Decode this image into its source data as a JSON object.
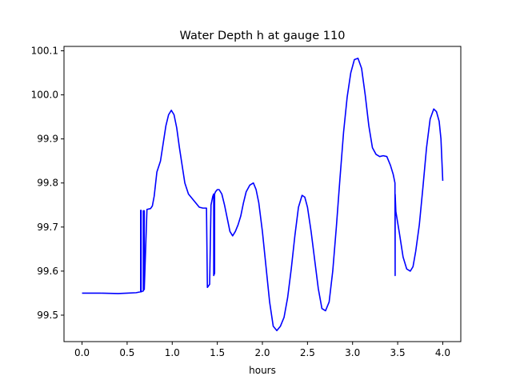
{
  "chart_data": {
    "type": "line",
    "title": "Water Depth h at gauge 110",
    "xlabel": "hours",
    "ylabel": "",
    "xlim": [
      -0.2,
      4.2
    ],
    "ylim": [
      99.44,
      100.11
    ],
    "xticks": [
      0.0,
      0.5,
      1.0,
      1.5,
      2.0,
      2.5,
      3.0,
      3.5,
      4.0
    ],
    "xtick_labels": [
      "0.0",
      "0.5",
      "1.0",
      "1.5",
      "2.0",
      "2.5",
      "3.0",
      "3.5",
      "4.0"
    ],
    "yticks": [
      99.5,
      99.6,
      99.7,
      99.8,
      99.9,
      100.0,
      100.1
    ],
    "ytick_labels": [
      "99.5",
      "99.6",
      "99.7",
      "99.8",
      "99.9",
      "100.0",
      "100.1"
    ],
    "grid": false,
    "legend": "none",
    "series": [
      {
        "color": "#0000ff",
        "x": [
          0.0,
          0.2,
          0.4,
          0.5,
          0.6,
          0.65,
          0.65,
          0.655,
          0.655,
          0.68,
          0.68,
          0.69,
          0.69,
          0.72,
          0.76,
          0.78,
          0.8,
          0.83,
          0.87,
          0.9,
          0.93,
          0.96,
          0.99,
          1.02,
          1.05,
          1.08,
          1.11,
          1.14,
          1.18,
          1.22,
          1.26,
          1.3,
          1.34,
          1.38,
          1.39,
          1.39,
          1.415,
          1.415,
          1.43,
          1.45,
          1.46,
          1.46,
          1.47,
          1.47,
          1.48,
          1.5,
          1.52,
          1.55,
          1.58,
          1.61,
          1.64,
          1.67,
          1.7,
          1.73,
          1.76,
          1.79,
          1.82,
          1.86,
          1.9,
          1.93,
          1.96,
          2.0,
          2.04,
          2.08,
          2.12,
          2.16,
          2.2,
          2.24,
          2.28,
          2.32,
          2.36,
          2.4,
          2.44,
          2.47,
          2.5,
          2.54,
          2.58,
          2.62,
          2.66,
          2.7,
          2.74,
          2.78,
          2.82,
          2.86,
          2.9,
          2.94,
          2.98,
          3.02,
          3.06,
          3.1,
          3.14,
          3.18,
          3.22,
          3.26,
          3.3,
          3.34,
          3.38,
          3.42,
          3.45,
          3.47,
          3.472,
          3.472,
          3.48,
          3.52,
          3.56,
          3.6,
          3.64,
          3.67,
          3.7,
          3.74,
          3.78,
          3.82,
          3.86,
          3.9,
          3.93,
          3.96,
          3.98,
          4.0
        ],
        "y": [
          99.55,
          99.55,
          99.549,
          99.55,
          99.551,
          99.553,
          99.738,
          99.738,
          99.553,
          99.555,
          99.737,
          99.737,
          99.558,
          99.74,
          99.742,
          99.748,
          99.77,
          99.825,
          99.85,
          99.89,
          99.93,
          99.955,
          99.965,
          99.955,
          99.925,
          99.88,
          99.84,
          99.8,
          99.775,
          99.765,
          99.755,
          99.745,
          99.743,
          99.743,
          99.563,
          99.563,
          99.57,
          99.57,
          99.75,
          99.77,
          99.775,
          99.59,
          99.595,
          99.775,
          99.78,
          99.785,
          99.785,
          99.775,
          99.75,
          99.72,
          99.69,
          99.68,
          99.69,
          99.705,
          99.725,
          99.755,
          99.78,
          99.795,
          99.8,
          99.785,
          99.755,
          99.69,
          99.61,
          99.53,
          99.475,
          99.465,
          99.475,
          99.495,
          99.54,
          99.605,
          99.68,
          99.745,
          99.772,
          99.768,
          99.745,
          99.69,
          99.625,
          99.56,
          99.515,
          99.51,
          99.53,
          99.6,
          99.7,
          99.81,
          99.915,
          99.995,
          100.05,
          100.08,
          100.083,
          100.06,
          100.0,
          99.93,
          99.88,
          99.865,
          99.86,
          99.862,
          99.86,
          99.84,
          99.82,
          99.8,
          99.59,
          99.775,
          99.735,
          99.685,
          99.632,
          99.605,
          99.6,
          99.61,
          99.645,
          99.705,
          99.79,
          99.88,
          99.945,
          99.968,
          99.962,
          99.94,
          99.9,
          99.805
        ]
      }
    ]
  }
}
